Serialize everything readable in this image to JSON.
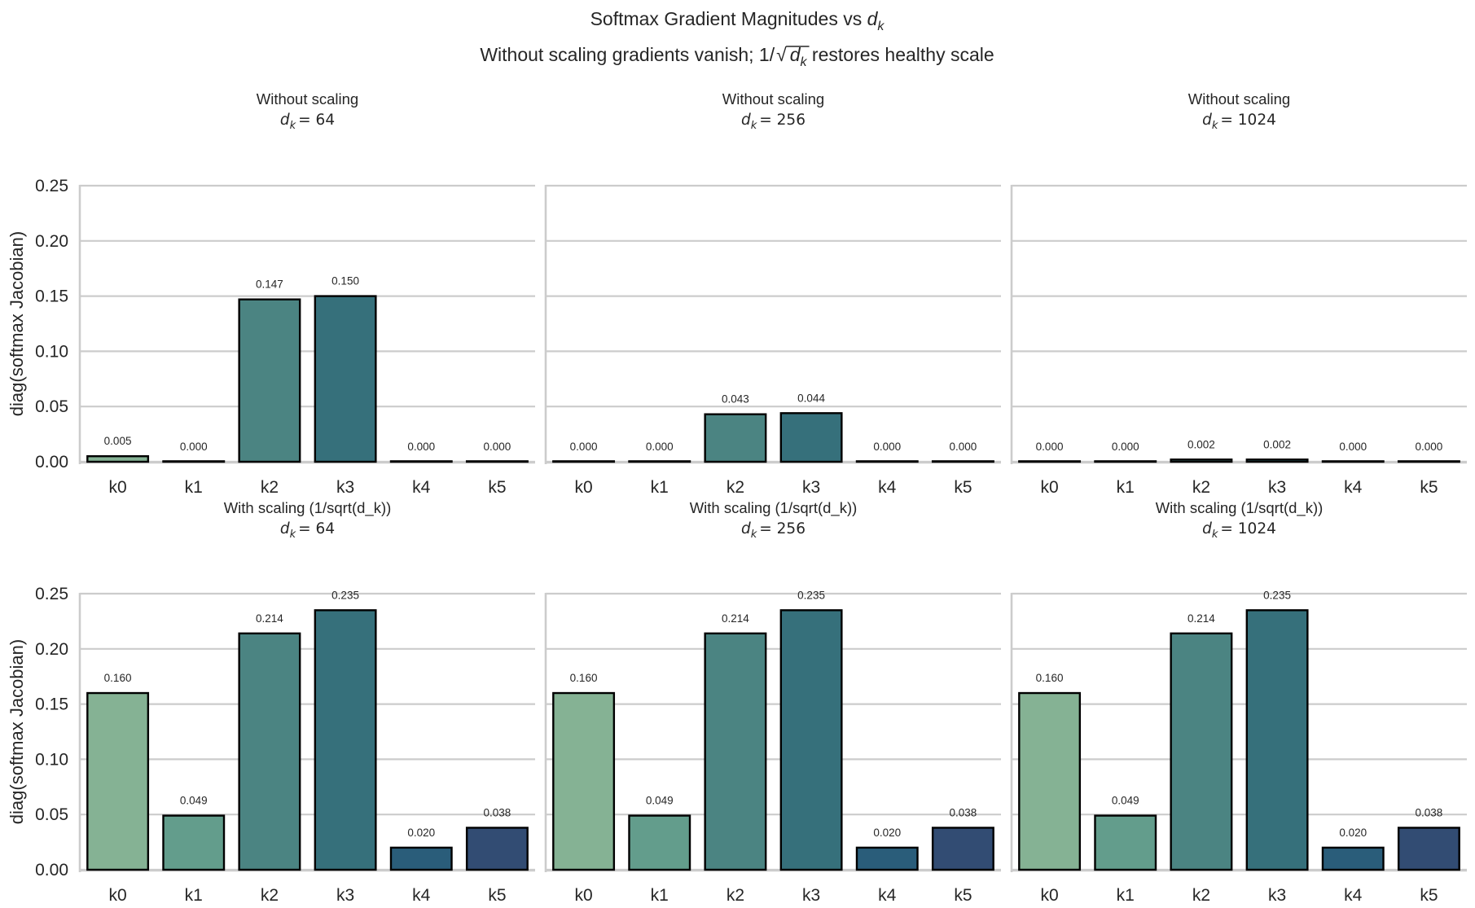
{
  "chart_data": {
    "type": "bar",
    "title": "Softmax Gradient Magnitudes vs",
    "title_math": "d",
    "title_math_sub": "k",
    "subtitle_prefix": "Without scaling gradients vanish; 1/",
    "subtitle_math": "d",
    "subtitle_math_sub": "k",
    "subtitle_suffix": " restores healthy scale",
    "ylabel": "diag(softmax Jacobian)",
    "ylim": [
      0,
      0.25
    ],
    "yticks": [
      "0.00",
      "0.05",
      "0.10",
      "0.15",
      "0.20",
      "0.25"
    ],
    "ytick_values": [
      0,
      0.05,
      0.1,
      0.15,
      0.2,
      0.25
    ],
    "grid": true,
    "categories": [
      "k0",
      "k1",
      "k2",
      "k3",
      "k4",
      "k5"
    ],
    "colors": [
      "#85b294",
      "#639d8c",
      "#4b8482",
      "#36707b",
      "#2a5d7a",
      "#324c73"
    ],
    "panels": [
      {
        "row": 0,
        "col": 0,
        "title": "Without scaling",
        "dk_label": "d",
        "dk_sub": "k",
        "dk_value": "= 64",
        "values": [
          0.005,
          0.0,
          0.147,
          0.15,
          0.0,
          0.0
        ],
        "labels": [
          "0.005",
          "0.000",
          "0.147",
          "0.150",
          "0.000",
          "0.000"
        ]
      },
      {
        "row": 0,
        "col": 1,
        "title": "Without scaling",
        "dk_label": "d",
        "dk_sub": "k",
        "dk_value": "= 256",
        "values": [
          0.0,
          0.0,
          0.043,
          0.044,
          0.0,
          0.0
        ],
        "labels": [
          "0.000",
          "0.000",
          "0.043",
          "0.044",
          "0.000",
          "0.000"
        ]
      },
      {
        "row": 0,
        "col": 2,
        "title": "Without scaling",
        "dk_label": "d",
        "dk_sub": "k",
        "dk_value": "= 1024",
        "values": [
          0.0,
          0.0,
          0.002,
          0.002,
          0.0,
          0.0
        ],
        "labels": [
          "0.000",
          "0.000",
          "0.002",
          "0.002",
          "0.000",
          "0.000"
        ]
      },
      {
        "row": 1,
        "col": 0,
        "title": "With scaling (1/sqrt(d_k))",
        "dk_label": "d",
        "dk_sub": "k",
        "dk_value": "= 64",
        "values": [
          0.16,
          0.049,
          0.214,
          0.235,
          0.02,
          0.038
        ],
        "labels": [
          "0.160",
          "0.049",
          "0.214",
          "0.235",
          "0.020",
          "0.038"
        ]
      },
      {
        "row": 1,
        "col": 1,
        "title": "With scaling (1/sqrt(d_k))",
        "dk_label": "d",
        "dk_sub": "k",
        "dk_value": "= 256",
        "values": [
          0.16,
          0.049,
          0.214,
          0.235,
          0.02,
          0.038
        ],
        "labels": [
          "0.160",
          "0.049",
          "0.214",
          "0.235",
          "0.020",
          "0.038"
        ]
      },
      {
        "row": 1,
        "col": 2,
        "title": "With scaling (1/sqrt(d_k))",
        "dk_label": "d",
        "dk_sub": "k",
        "dk_value": "= 1024",
        "values": [
          0.16,
          0.049,
          0.214,
          0.235,
          0.02,
          0.038
        ],
        "labels": [
          "0.160",
          "0.049",
          "0.214",
          "0.235",
          "0.020",
          "0.038"
        ]
      }
    ]
  }
}
